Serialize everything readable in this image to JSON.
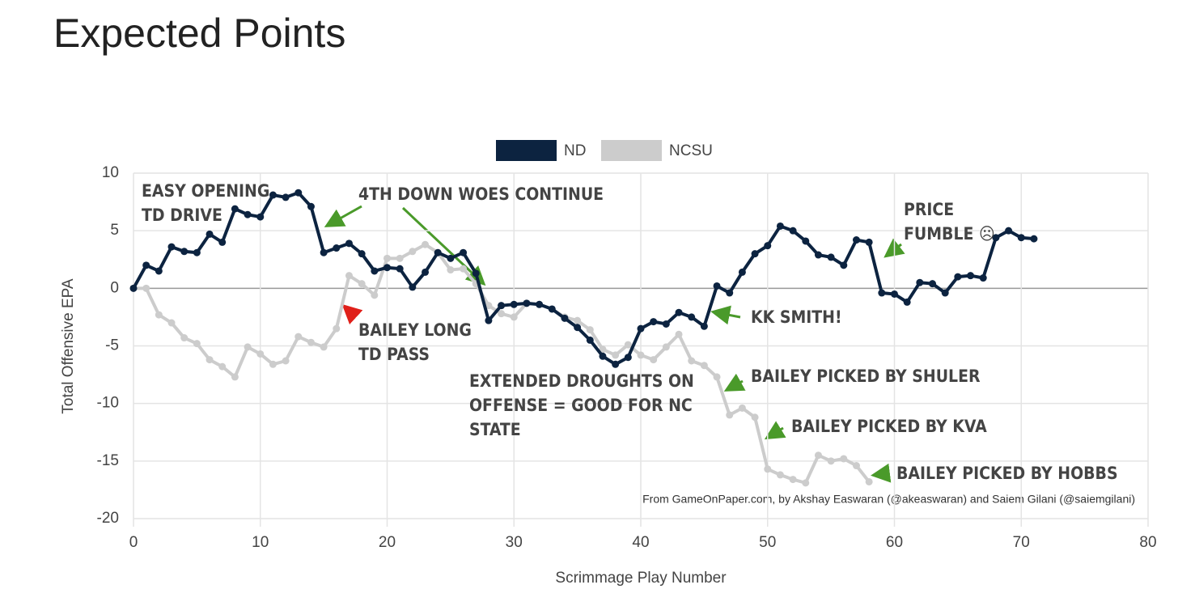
{
  "chart_data": {
    "type": "line",
    "title": "Expected Points",
    "xlabel": "Scrimmage Play Number",
    "ylabel": "Total Offensive EPA",
    "source": "From GameOnPaper.com, by Akshay Easwaran (@akeaswaran) and Saiem Gilani (@saiemgilani)",
    "xlim": [
      0,
      80
    ],
    "xticks": [
      0,
      10,
      20,
      30,
      40,
      50,
      60,
      70,
      80
    ],
    "ylim": [
      -20,
      10
    ],
    "yticks": [
      -20,
      -15,
      -10,
      -5,
      0,
      5,
      10
    ],
    "grid": true,
    "legend": "top",
    "series": [
      {
        "name": "ND",
        "color": "#0c2340",
        "x": [
          0,
          1,
          2,
          3,
          4,
          5,
          6,
          7,
          8,
          9,
          10,
          11,
          12,
          13,
          14,
          15,
          16,
          17,
          18,
          19,
          20,
          21,
          22,
          23,
          24,
          25,
          26,
          27,
          28,
          29,
          30,
          31,
          32,
          33,
          34,
          35,
          36,
          37,
          38,
          39,
          40,
          41,
          42,
          43,
          44,
          45,
          46,
          47,
          48,
          49,
          50,
          51,
          52,
          53,
          54,
          55,
          56,
          57,
          58,
          59,
          60,
          61,
          62,
          63,
          64,
          65,
          66,
          67,
          68,
          69,
          70,
          71
        ],
        "values": [
          0,
          2.0,
          1.5,
          3.6,
          3.2,
          3.1,
          4.7,
          4.0,
          6.9,
          6.4,
          6.2,
          8.1,
          7.9,
          8.3,
          7.1,
          3.1,
          3.5,
          3.9,
          3.0,
          1.5,
          1.8,
          1.7,
          0.1,
          1.4,
          3.1,
          2.6,
          3.1,
          1.3,
          -2.8,
          -1.5,
          -1.4,
          -1.3,
          -1.4,
          -1.8,
          -2.6,
          -3.4,
          -4.5,
          -5.9,
          -6.6,
          -6.0,
          -3.5,
          -2.9,
          -3.1,
          -2.1,
          -2.5,
          -3.3,
          0.2,
          -0.4,
          1.4,
          3.0,
          3.7,
          5.4,
          5.0,
          4.1,
          2.9,
          2.7,
          2.0,
          4.2,
          4.0,
          -0.4,
          -0.5,
          -1.2,
          0.5,
          0.4,
          -0.4,
          1.0,
          1.1,
          0.9,
          4.4,
          5.0,
          4.4,
          4.3
        ]
      },
      {
        "name": "NCSU",
        "color": "#cccccc",
        "x": [
          0,
          1,
          2,
          3,
          4,
          5,
          6,
          7,
          8,
          9,
          10,
          11,
          12,
          13,
          14,
          15,
          16,
          17,
          18,
          19,
          20,
          21,
          22,
          23,
          24,
          25,
          26,
          27,
          28,
          29,
          30,
          31,
          32,
          33,
          34,
          35,
          36,
          37,
          38,
          39,
          40,
          41,
          42,
          43,
          44,
          45,
          46,
          47,
          48,
          49,
          50,
          51,
          52,
          53,
          54,
          55,
          56,
          57,
          58
        ],
        "values": [
          0,
          0,
          -2.3,
          -3.0,
          -4.3,
          -4.8,
          -6.2,
          -6.8,
          -7.7,
          -5.1,
          -5.7,
          -6.6,
          -6.3,
          -4.2,
          -4.7,
          -5.1,
          -3.5,
          1.1,
          0.4,
          -0.6,
          2.6,
          2.6,
          3.2,
          3.8,
          3.1,
          1.6,
          1.7,
          0.4,
          -1.5,
          -2.2,
          -2.5,
          -1.3,
          -1.4,
          -1.8,
          -2.5,
          -2.8,
          -3.6,
          -5.3,
          -5.8,
          -4.9,
          -5.8,
          -6.2,
          -5.1,
          -4.0,
          -6.3,
          -6.7,
          -7.7,
          -11.0,
          -10.4,
          -11.2,
          -15.7,
          -16.2,
          -16.6,
          -16.9,
          -14.5,
          -15.0,
          -14.8,
          -15.4,
          -16.8
        ]
      }
    ],
    "annotations": [
      {
        "lines": [
          "EASY OPENING",
          "TD DRIVE"
        ],
        "color": "#4a9a2a"
      },
      {
        "lines": [
          "4TH DOWN WOES CONTINUE"
        ],
        "color": "#4a9a2a"
      },
      {
        "lines": [
          "BAILEY LONG",
          "TD PASS"
        ],
        "color": "#e0201a"
      },
      {
        "lines": [
          "EXTENDED DROUGHTS ON",
          "OFFENSE = GOOD FOR NC",
          "STATE"
        ],
        "color": "#e0201a"
      },
      {
        "lines": [
          "KK SMITH!"
        ],
        "color": "#4a9a2a"
      },
      {
        "lines": [
          "PRICE",
          "FUMBLE ☹"
        ],
        "color": "#4a9a2a"
      },
      {
        "lines": [
          "BAILEY PICKED BY SHULER"
        ],
        "color": "#4a9a2a"
      },
      {
        "lines": [
          "BAILEY PICKED BY KVA"
        ],
        "color": "#4a9a2a"
      },
      {
        "lines": [
          "BAILEY PICKED BY HOBBS"
        ],
        "color": "#4a9a2a"
      }
    ]
  }
}
